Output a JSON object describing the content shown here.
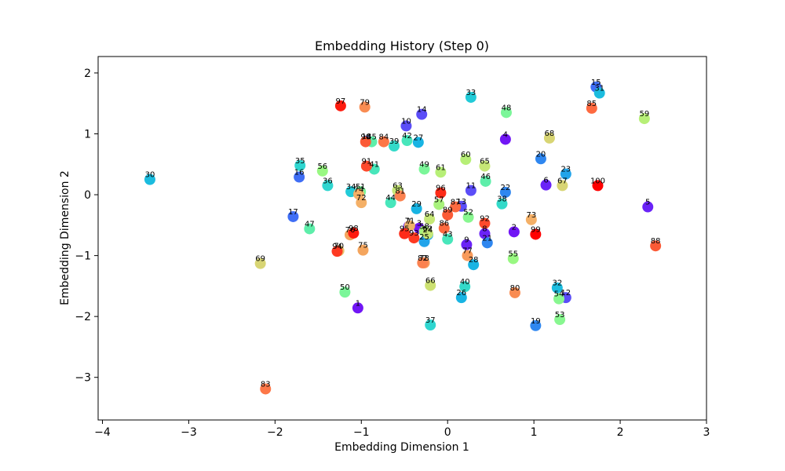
{
  "chart_data": {
    "type": "scatter",
    "title": "Embedding History (Step 0)",
    "xlabel": "Embedding Dimension 1",
    "ylabel": "Embedding Dimension 2",
    "xlim": [
      -4.05,
      3.0
    ],
    "ylim": [
      -3.7,
      2.27
    ],
    "xticks": [
      -4,
      -3,
      -2,
      -1,
      0,
      1,
      2,
      3
    ],
    "yticks": [
      -3,
      -2,
      -1,
      0,
      1,
      2
    ],
    "grid": false,
    "colormap": "rainbow",
    "points": [
      {
        "label": "1",
        "x": -1.04,
        "y": -1.86,
        "color": "#7116f5"
      },
      {
        "label": "2",
        "x": 0.77,
        "y": -0.61,
        "color": "#7116f5"
      },
      {
        "label": "3",
        "x": -0.33,
        "y": -0.55,
        "color": "#7116f5"
      },
      {
        "label": "4",
        "x": 0.67,
        "y": 0.91,
        "color": "#7116f5"
      },
      {
        "label": "5",
        "x": 2.32,
        "y": -0.2,
        "color": "#6a23f7"
      },
      {
        "label": "6",
        "x": 1.14,
        "y": 0.16,
        "color": "#6a23f7"
      },
      {
        "label": "7",
        "x": -0.45,
        "y": -0.52,
        "color": "#6a23f7"
      },
      {
        "label": "8",
        "x": 0.43,
        "y": -0.64,
        "color": "#6a23f7"
      },
      {
        "label": "9",
        "x": 0.22,
        "y": -0.82,
        "color": "#6a23f7"
      },
      {
        "label": "10",
        "x": -0.48,
        "y": 1.13,
        "color": "#5b4df8"
      },
      {
        "label": "11",
        "x": 0.27,
        "y": 0.07,
        "color": "#5b4df8"
      },
      {
        "label": "12",
        "x": 1.37,
        "y": -1.69,
        "color": "#5b4df8"
      },
      {
        "label": "13",
        "x": 0.16,
        "y": -0.19,
        "color": "#5b4df8"
      },
      {
        "label": "14",
        "x": -0.3,
        "y": 1.32,
        "color": "#5b4df8"
      },
      {
        "label": "15",
        "x": 1.72,
        "y": 1.77,
        "color": "#3f6ef5"
      },
      {
        "label": "16",
        "x": -1.72,
        "y": 0.29,
        "color": "#3f6ef5"
      },
      {
        "label": "17",
        "x": -1.79,
        "y": -0.36,
        "color": "#3f6ef5"
      },
      {
        "label": "18",
        "x": -0.94,
        "y": 0.88,
        "color": "#3f6ef5"
      },
      {
        "label": "19",
        "x": 1.02,
        "y": -2.15,
        "color": "#2f87f0"
      },
      {
        "label": "20",
        "x": 1.08,
        "y": 0.59,
        "color": "#2f87f0"
      },
      {
        "label": "21",
        "x": 0.46,
        "y": -0.79,
        "color": "#2f87f0"
      },
      {
        "label": "22",
        "x": 0.67,
        "y": 0.04,
        "color": "#2f87f0"
      },
      {
        "label": "23",
        "x": 1.37,
        "y": 0.34,
        "color": "#21a4ea"
      },
      {
        "label": "24",
        "x": -0.23,
        "y": -0.66,
        "color": "#21a4ea"
      },
      {
        "label": "25",
        "x": -0.27,
        "y": -0.77,
        "color": "#21a4ea"
      },
      {
        "label": "26",
        "x": 0.16,
        "y": -1.69,
        "color": "#18b4e3"
      },
      {
        "label": "27",
        "x": -0.34,
        "y": 0.86,
        "color": "#18b4e3"
      },
      {
        "label": "28",
        "x": 0.3,
        "y": -1.15,
        "color": "#18b4e3"
      },
      {
        "label": "29",
        "x": -0.36,
        "y": -0.23,
        "color": "#18b4e3"
      },
      {
        "label": "30",
        "x": -3.45,
        "y": 0.25,
        "color": "#1bbcdf"
      },
      {
        "label": "31",
        "x": 1.76,
        "y": 1.67,
        "color": "#1bbcdf"
      },
      {
        "label": "32",
        "x": 1.27,
        "y": -1.53,
        "color": "#1bbcdf"
      },
      {
        "label": "33",
        "x": 0.27,
        "y": 1.6,
        "color": "#22cbd8"
      },
      {
        "label": "34",
        "x": -1.12,
        "y": 0.05,
        "color": "#22cbd8"
      },
      {
        "label": "35",
        "x": -1.71,
        "y": 0.48,
        "color": "#2fd6d0"
      },
      {
        "label": "36",
        "x": -1.39,
        "y": 0.15,
        "color": "#2fd6d0"
      },
      {
        "label": "37",
        "x": -0.2,
        "y": -2.14,
        "color": "#2fd6d0"
      },
      {
        "label": "38",
        "x": 0.63,
        "y": -0.15,
        "color": "#33dac9"
      },
      {
        "label": "39",
        "x": -0.62,
        "y": 0.8,
        "color": "#33dac9"
      },
      {
        "label": "40",
        "x": 0.2,
        "y": -1.51,
        "color": "#33dac9"
      },
      {
        "label": "41",
        "x": -0.85,
        "y": 0.42,
        "color": "#48e6bb"
      },
      {
        "label": "42",
        "x": -0.47,
        "y": 0.89,
        "color": "#48e6bb"
      },
      {
        "label": "43",
        "x": 0.0,
        "y": -0.73,
        "color": "#48e6bb"
      },
      {
        "label": "44",
        "x": -0.66,
        "y": -0.13,
        "color": "#48e6bb"
      },
      {
        "label": "45",
        "x": -0.88,
        "y": 0.87,
        "color": "#5eeeaa"
      },
      {
        "label": "46",
        "x": 0.44,
        "y": 0.22,
        "color": "#5eeeaa"
      },
      {
        "label": "47",
        "x": -1.6,
        "y": -0.56,
        "color": "#5eeeaa"
      },
      {
        "label": "48",
        "x": 0.68,
        "y": 1.35,
        "color": "#7bf699"
      },
      {
        "label": "49",
        "x": -0.27,
        "y": 0.42,
        "color": "#7bf699"
      },
      {
        "label": "50",
        "x": -1.19,
        "y": -1.6,
        "color": "#7bf699"
      },
      {
        "label": "51",
        "x": -1.01,
        "y": 0.05,
        "color": "#7bf699"
      },
      {
        "label": "52",
        "x": 0.24,
        "y": -0.37,
        "color": "#88f790"
      },
      {
        "label": "53",
        "x": 1.3,
        "y": -2.05,
        "color": "#88f790"
      },
      {
        "label": "54",
        "x": 1.29,
        "y": -1.71,
        "color": "#88f790"
      },
      {
        "label": "55",
        "x": 0.76,
        "y": -1.05,
        "color": "#99f882"
      },
      {
        "label": "56",
        "x": -1.45,
        "y": 0.39,
        "color": "#99f882"
      },
      {
        "label": "57",
        "x": -0.1,
        "y": -0.16,
        "color": "#a8f27c"
      },
      {
        "label": "58",
        "x": -0.27,
        "y": -0.6,
        "color": "#a8f27c"
      },
      {
        "label": "59",
        "x": 2.28,
        "y": 1.25,
        "color": "#b7ef77"
      },
      {
        "label": "60",
        "x": 0.21,
        "y": 0.58,
        "color": "#b7ef77"
      },
      {
        "label": "61",
        "x": -0.08,
        "y": 0.37,
        "color": "#b7ef77"
      },
      {
        "label": "62",
        "x": -0.23,
        "y": -0.64,
        "color": "#c6e776"
      },
      {
        "label": "63",
        "x": -0.58,
        "y": 0.07,
        "color": "#c6e776"
      },
      {
        "label": "64",
        "x": -0.21,
        "y": -0.4,
        "color": "#c6e776"
      },
      {
        "label": "65",
        "x": 0.43,
        "y": 0.47,
        "color": "#c6e776"
      },
      {
        "label": "66",
        "x": -0.2,
        "y": -1.49,
        "color": "#cde171"
      },
      {
        "label": "67",
        "x": 1.33,
        "y": 0.15,
        "color": "#d8d574"
      },
      {
        "label": "68",
        "x": 1.18,
        "y": 0.93,
        "color": "#d8d574"
      },
      {
        "label": "69",
        "x": -2.17,
        "y": -1.13,
        "color": "#d8d574"
      },
      {
        "label": "70",
        "x": -1.26,
        "y": -0.92,
        "color": "#e8c36e"
      },
      {
        "label": "71",
        "x": -0.44,
        "y": -0.51,
        "color": "#efb469"
      },
      {
        "label": "72",
        "x": -1.0,
        "y": -0.13,
        "color": "#f4b067"
      },
      {
        "label": "73",
        "x": 0.97,
        "y": -0.41,
        "color": "#f4b067"
      },
      {
        "label": "74",
        "x": -1.03,
        "y": 0.01,
        "color": "#f4b067"
      },
      {
        "label": "75",
        "x": -0.98,
        "y": -0.91,
        "color": "#f4a55e"
      },
      {
        "label": "76",
        "x": -1.13,
        "y": -0.66,
        "color": "#f4a55e"
      },
      {
        "label": "77",
        "x": 0.23,
        "y": -1.0,
        "color": "#f89a5a"
      },
      {
        "label": "78",
        "x": -0.27,
        "y": -1.12,
        "color": "#f89a5a"
      },
      {
        "label": "79",
        "x": -0.96,
        "y": 1.44,
        "color": "#f98c52"
      },
      {
        "label": "80",
        "x": 0.78,
        "y": -1.61,
        "color": "#f98c52"
      },
      {
        "label": "81",
        "x": -0.55,
        "y": -0.02,
        "color": "#fb8250"
      },
      {
        "label": "82",
        "x": -0.29,
        "y": -1.12,
        "color": "#fb8250"
      },
      {
        "label": "83",
        "x": -2.11,
        "y": -3.19,
        "color": "#fd7748"
      },
      {
        "label": "84",
        "x": -0.74,
        "y": 0.87,
        "color": "#fd7748"
      },
      {
        "label": "85",
        "x": 1.67,
        "y": 1.42,
        "color": "#fe6a40"
      },
      {
        "label": "86",
        "x": -0.04,
        "y": -0.55,
        "color": "#fe6a40"
      },
      {
        "label": "87",
        "x": 0.09,
        "y": -0.2,
        "color": "#fe6a40"
      },
      {
        "label": "88",
        "x": 2.41,
        "y": -0.84,
        "color": "#fb5a36"
      },
      {
        "label": "89",
        "x": 0.0,
        "y": -0.33,
        "color": "#fb5a36"
      },
      {
        "label": "90",
        "x": -0.95,
        "y": 0.87,
        "color": "#fb5a36"
      },
      {
        "label": "91",
        "x": -0.94,
        "y": 0.47,
        "color": "#fe4a2c"
      },
      {
        "label": "92",
        "x": 0.43,
        "y": -0.47,
        "color": "#fe4a2c"
      },
      {
        "label": "93",
        "x": -0.39,
        "y": -0.71,
        "color": "#fe3a22"
      },
      {
        "label": "94",
        "x": -1.28,
        "y": -0.93,
        "color": "#fe3a22"
      },
      {
        "label": "95",
        "x": -0.5,
        "y": -0.64,
        "color": "#fe2b18"
      },
      {
        "label": "96",
        "x": -0.08,
        "y": 0.03,
        "color": "#fe2b18"
      },
      {
        "label": "97",
        "x": -1.24,
        "y": 1.46,
        "color": "#fe1b0e"
      },
      {
        "label": "98",
        "x": -1.09,
        "y": -0.63,
        "color": "#fe1b0e"
      },
      {
        "label": "99",
        "x": 1.02,
        "y": -0.65,
        "color": "#ff0000"
      },
      {
        "label": "100",
        "x": 1.74,
        "y": 0.15,
        "color": "#ff0000"
      }
    ]
  }
}
